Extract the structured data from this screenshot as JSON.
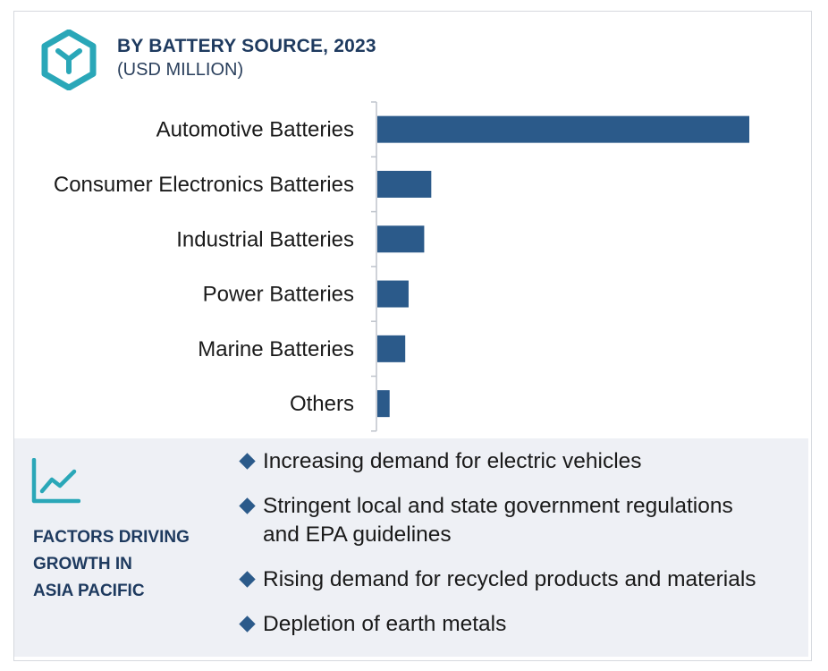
{
  "header": {
    "title": "BY BATTERY SOURCE, 2023",
    "subtitle": "(USD MILLION)"
  },
  "colors": {
    "bar": "#2b5a8a",
    "accent_teal": "#2aa7b8",
    "title_navy": "#1e3a5f",
    "panel_bg": "#eef0f5"
  },
  "icons": {
    "logo": "hexagon-y-logo-icon",
    "trend": "line-chart-trend-icon",
    "bullet": "diamond-bullet-icon"
  },
  "chart_data": {
    "type": "bar",
    "orientation": "horizontal",
    "categories": [
      "Automotive Batteries",
      "Consumer Electronics Batteries",
      "Industrial Batteries",
      "Power Batteries",
      "Marine Batteries",
      "Others"
    ],
    "values": [
      100,
      14.5,
      12.6,
      8.4,
      7.5,
      3.3
    ],
    "title": "BY BATTERY SOURCE, 2023",
    "ylabel": "",
    "xlabel": "",
    "xlim": [
      0,
      100
    ],
    "grid": false,
    "legend": "none"
  },
  "factors": {
    "title_lines": [
      "FACTORS DRIVING",
      "GROWTH IN",
      "ASIA PACIFIC"
    ],
    "items": [
      {
        "lines": [
          "Increasing demand for electric vehicles"
        ]
      },
      {
        "lines": [
          "Stringent local and state government regulations",
          "and EPA guidelines"
        ]
      },
      {
        "lines": [
          "Rising demand for recycled products and materials"
        ]
      },
      {
        "lines": [
          "Depletion of earth metals"
        ]
      }
    ]
  }
}
